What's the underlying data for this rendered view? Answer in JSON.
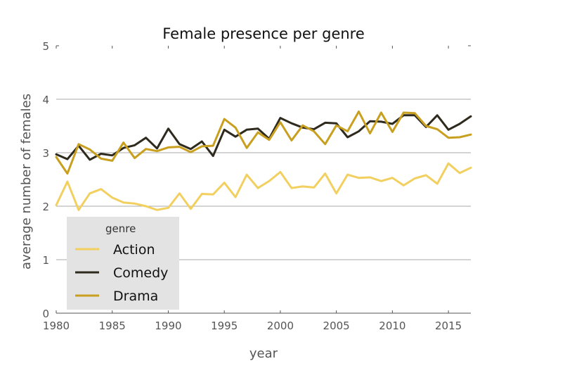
{
  "chart_data": {
    "type": "line",
    "title": "Female presence per genre",
    "xlabel": "year",
    "ylabel": "average number of females",
    "xlim": [
      1980,
      2017
    ],
    "ylim": [
      0,
      5
    ],
    "xticks": [
      1980,
      1985,
      1990,
      1995,
      2000,
      2005,
      2010,
      2015
    ],
    "yticks": [
      0,
      1,
      2,
      3,
      4,
      5
    ],
    "grid": "horizontal",
    "legend": {
      "title": "genre",
      "placement": "lower-left"
    },
    "x": [
      1980,
      1981,
      1982,
      1983,
      1984,
      1985,
      1986,
      1987,
      1988,
      1989,
      1990,
      1991,
      1992,
      1993,
      1994,
      1995,
      1996,
      1997,
      1998,
      1999,
      2000,
      2001,
      2002,
      2003,
      2004,
      2005,
      2006,
      2007,
      2008,
      2009,
      2010,
      2011,
      2012,
      2013,
      2014,
      2015,
      2016,
      2017
    ],
    "series": [
      {
        "name": "Action",
        "color": "#f2d060",
        "values": [
          2.02,
          2.46,
          1.93,
          2.24,
          2.32,
          2.16,
          2.07,
          2.05,
          2.0,
          1.93,
          1.97,
          2.24,
          1.95,
          2.23,
          2.22,
          2.44,
          2.17,
          2.59,
          2.34,
          2.47,
          2.64,
          2.34,
          2.37,
          2.35,
          2.61,
          2.24,
          2.59,
          2.53,
          2.54,
          2.47,
          2.53,
          2.39,
          2.52,
          2.58,
          2.42,
          2.8,
          2.62,
          2.72
        ]
      },
      {
        "name": "Comedy",
        "color": "#2e2a1e",
        "values": [
          2.97,
          2.88,
          3.13,
          2.87,
          2.98,
          2.95,
          3.09,
          3.14,
          3.28,
          3.08,
          3.45,
          3.16,
          3.07,
          3.21,
          2.94,
          3.43,
          3.3,
          3.43,
          3.45,
          3.26,
          3.65,
          3.55,
          3.47,
          3.44,
          3.56,
          3.55,
          3.29,
          3.4,
          3.59,
          3.58,
          3.54,
          3.7,
          3.7,
          3.48,
          3.7,
          3.43,
          3.54,
          3.68
        ]
      },
      {
        "name": "Drama",
        "color": "#c89f1e",
        "values": [
          2.92,
          2.61,
          3.16,
          3.06,
          2.89,
          2.85,
          3.19,
          2.9,
          3.07,
          3.03,
          3.1,
          3.11,
          3.01,
          3.12,
          3.13,
          3.63,
          3.47,
          3.09,
          3.38,
          3.24,
          3.57,
          3.23,
          3.51,
          3.4,
          3.16,
          3.51,
          3.4,
          3.77,
          3.36,
          3.75,
          3.39,
          3.75,
          3.74,
          3.5,
          3.44,
          3.28,
          3.29,
          3.34
        ]
      }
    ]
  }
}
